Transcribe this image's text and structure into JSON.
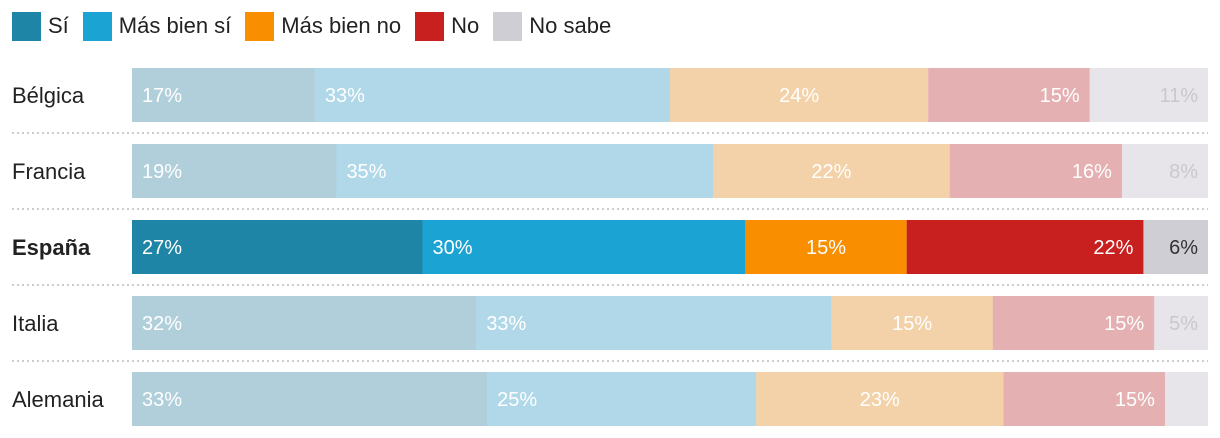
{
  "chart_data": {
    "type": "bar",
    "orientation": "horizontal",
    "stacked": true,
    "value_format": "percent",
    "highlight": "España",
    "categories": [
      "Bélgica",
      "Francia",
      "España",
      "Italia",
      "Alemania"
    ],
    "series": [
      {
        "name": "Sí",
        "color": "#1f85a6",
        "values": [
          17,
          19,
          27,
          32,
          33
        ],
        "labels": [
          "17%",
          "19%",
          "27%",
          "32%",
          "33%"
        ]
      },
      {
        "name": "Más bien sí",
        "color": "#1ba3d3",
        "values": [
          33,
          35,
          30,
          33,
          25
        ],
        "labels": [
          "33%",
          "35%",
          "30%",
          "33%",
          "25%"
        ]
      },
      {
        "name": "Más bien no",
        "color": "#f98e00",
        "values": [
          24,
          22,
          15,
          15,
          23
        ],
        "labels": [
          "24%",
          "22%",
          "15%",
          "15%",
          "23%"
        ]
      },
      {
        "name": "No",
        "color": "#c81f1f",
        "values": [
          15,
          16,
          22,
          15,
          15
        ],
        "labels": [
          "15%",
          "16%",
          "22%",
          "15%",
          "15%"
        ]
      },
      {
        "name": "No sabe",
        "color": "#cfced4",
        "values": [
          11,
          8,
          6,
          5,
          4
        ],
        "labels": [
          "11%",
          "8%",
          "6%",
          "5%",
          ""
        ]
      }
    ],
    "xlim": [
      0,
      100
    ],
    "grid": false,
    "legend_position": "top-left"
  }
}
